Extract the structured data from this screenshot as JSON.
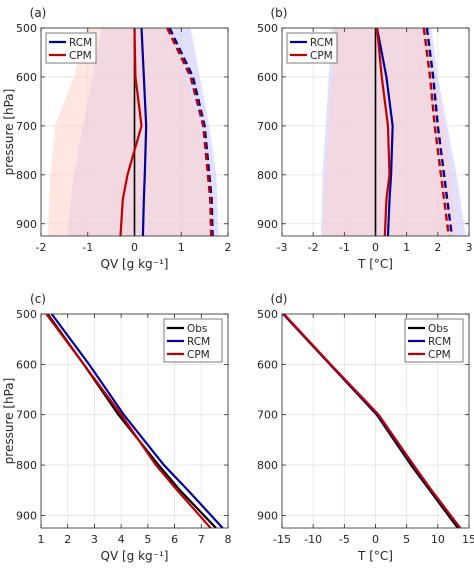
{
  "figure": {
    "panels": [
      {
        "id": "a",
        "label": "(a)",
        "chart_data": {
          "type": "line",
          "xlabel": "QV [g kg⁻¹]",
          "ylabel": "pressure [hPa]",
          "xlim": [
            -2,
            2
          ],
          "ylim": [
            500,
            925
          ],
          "y_reversed": true,
          "xticks": [
            -2,
            -1,
            0,
            1,
            2
          ],
          "yticks": [
            500,
            600,
            700,
            800,
            900
          ],
          "grid": true,
          "legend": {
            "position": "top-left",
            "entries": [
              "RCM",
              "CPM"
            ]
          },
          "pressure": [
            500,
            600,
            700,
            800,
            850,
            925
          ],
          "series": [
            {
              "name": "RCM",
              "kind": "mean",
              "color": "#0000a0",
              "values": [
                0.15,
                0.2,
                0.25,
                0.22,
                0.2,
                0.18
              ]
            },
            {
              "name": "CPM",
              "kind": "mean",
              "color": "#c00000",
              "values": [
                0.0,
                0.02,
                0.15,
                -0.15,
                -0.25,
                -0.3
              ]
            },
            {
              "name": "RCM",
              "kind": "dashed",
              "color": "#0000a0",
              "values": [
                0.75,
                1.25,
                1.5,
                1.6,
                1.65,
                1.67
              ]
            },
            {
              "name": "CPM",
              "kind": "dashed",
              "color": "#c00000",
              "values": [
                0.7,
                1.2,
                1.47,
                1.57,
                1.62,
                1.64
              ]
            }
          ],
          "bands": [
            {
              "name": "RCM",
              "color": "#c8c8ff",
              "pressure": [
                500,
                600,
                700,
                800,
                925
              ],
              "lower": [
                -0.7,
                -0.9,
                -1.1,
                -1.3,
                -1.45
              ],
              "upper": [
                1.2,
                1.4,
                1.6,
                1.75,
                1.8
              ]
            },
            {
              "name": "CPM",
              "color": "#ffd2c8",
              "pressure": [
                500,
                600,
                700,
                800,
                925
              ],
              "lower": [
                -1.0,
                -1.3,
                -1.7,
                -1.8,
                -1.85
              ],
              "upper": [
                0.8,
                1.1,
                1.4,
                1.55,
                1.65
              ]
            }
          ],
          "zero_line": {
            "x": 0,
            "color": "#000000"
          }
        }
      },
      {
        "id": "b",
        "label": "(b)",
        "chart_data": {
          "type": "line",
          "xlabel": "T [°C]",
          "ylabel": "",
          "xlim": [
            -3,
            3
          ],
          "ylim": [
            500,
            925
          ],
          "y_reversed": true,
          "xticks": [
            -3,
            -2,
            -1,
            0,
            1,
            2,
            3
          ],
          "yticks": [
            500,
            600,
            700,
            800,
            900
          ],
          "grid": true,
          "legend": {
            "position": "top-left",
            "entries": [
              "RCM",
              "CPM"
            ]
          },
          "pressure": [
            500,
            600,
            700,
            800,
            850,
            925
          ],
          "series": [
            {
              "name": "RCM",
              "kind": "mean",
              "color": "#0000a0",
              "values": [
                0.05,
                0.35,
                0.55,
                0.5,
                0.45,
                0.4
              ]
            },
            {
              "name": "CPM",
              "kind": "mean",
              "color": "#c00000",
              "values": [
                0.05,
                0.2,
                0.4,
                0.45,
                0.35,
                0.3
              ]
            },
            {
              "name": "RCM",
              "kind": "dashed",
              "color": "#0000a0",
              "values": [
                1.65,
                1.85,
                2.0,
                2.2,
                2.3,
                2.45
              ]
            },
            {
              "name": "CPM",
              "kind": "dashed",
              "color": "#c00000",
              "values": [
                1.55,
                1.75,
                1.9,
                2.1,
                2.2,
                2.35
              ]
            }
          ],
          "bands": [
            {
              "name": "RCM",
              "color": "#c8c8ff",
              "pressure": [
                500,
                600,
                700,
                800,
                925
              ],
              "lower": [
                -1.4,
                -1.5,
                -1.6,
                -1.7,
                -1.75
              ],
              "upper": [
                1.8,
                2.0,
                2.3,
                2.6,
                2.9
              ]
            },
            {
              "name": "CPM",
              "color": "#ffd2c8",
              "pressure": [
                500,
                600,
                700,
                800,
                925
              ],
              "lower": [
                -1.3,
                -1.4,
                -1.5,
                -1.6,
                -1.7
              ],
              "upper": [
                1.7,
                1.9,
                2.2,
                2.4,
                2.6
              ]
            }
          ],
          "zero_line": {
            "x": 0,
            "color": "#000000"
          }
        }
      },
      {
        "id": "c",
        "label": "(c)",
        "chart_data": {
          "type": "line",
          "xlabel": "QV [g kg⁻¹]",
          "ylabel": "pressure [hPa]",
          "xlim": [
            1,
            8
          ],
          "ylim": [
            500,
            925
          ],
          "y_reversed": true,
          "xticks": [
            1,
            2,
            3,
            4,
            5,
            6,
            7,
            8
          ],
          "yticks": [
            500,
            600,
            700,
            800,
            900
          ],
          "grid": true,
          "legend": {
            "position": "top-right",
            "entries": [
              "Obs",
              "RCM",
              "CPM"
            ]
          },
          "pressure": [
            500,
            600,
            700,
            800,
            850,
            925
          ],
          "series": [
            {
              "name": "Obs",
              "kind": "solid",
              "color": "#000000",
              "values": [
                1.25,
                2.6,
                3.9,
                5.4,
                6.2,
                7.55
              ]
            },
            {
              "name": "RCM",
              "kind": "solid",
              "color": "#0000a0",
              "values": [
                1.4,
                2.8,
                4.1,
                5.6,
                6.5,
                7.8
              ]
            },
            {
              "name": "CPM",
              "kind": "solid",
              "color": "#c00000",
              "values": [
                1.2,
                2.6,
                4.0,
                5.3,
                6.1,
                7.35
              ]
            }
          ]
        }
      },
      {
        "id": "d",
        "label": "(d)",
        "chart_data": {
          "type": "line",
          "xlabel": "T [°C]",
          "ylabel": "",
          "xlim": [
            -15,
            15
          ],
          "ylim": [
            500,
            925
          ],
          "y_reversed": true,
          "xticks": [
            -15,
            -10,
            -5,
            0,
            5,
            10,
            15
          ],
          "yticks": [
            500,
            600,
            700,
            800,
            900
          ],
          "grid": true,
          "legend": {
            "position": "top-right",
            "entries": [
              "Obs",
              "RCM",
              "CPM"
            ]
          },
          "pressure": [
            500,
            600,
            700,
            800,
            850,
            925
          ],
          "series": [
            {
              "name": "Obs",
              "kind": "solid",
              "color": "#000000",
              "values": [
                -14.8,
                -7.3,
                0.2,
                5.7,
                8.7,
                13.2
              ]
            },
            {
              "name": "RCM",
              "kind": "solid",
              "color": "#0000a0",
              "values": [
                -14.8,
                -7.3,
                0.3,
                6.0,
                8.9,
                13.5
              ]
            },
            {
              "name": "CPM",
              "kind": "solid",
              "color": "#c00000",
              "values": [
                -14.7,
                -7.2,
                0.5,
                6.1,
                9.0,
                13.6
              ]
            }
          ]
        }
      }
    ]
  }
}
